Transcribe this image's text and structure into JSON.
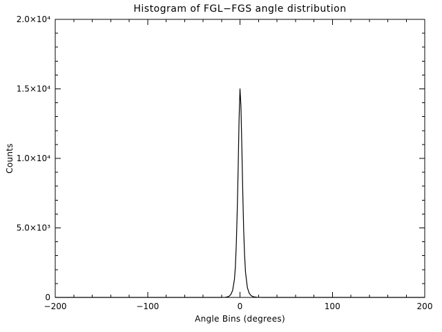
{
  "chart": {
    "title": "Histogram of FGL−FGS angle distribution",
    "xlabel": "Angle Bins (degrees)",
    "ylabel": "Counts"
  },
  "chart_data": {
    "type": "line",
    "title": "Histogram of FGL−FGS angle distribution",
    "xlabel": "Angle Bins (degrees)",
    "ylabel": "Counts",
    "xlim": [
      -200,
      200
    ],
    "ylim": [
      0,
      20000
    ],
    "grid": false,
    "legend": "none",
    "line_color": "#000000",
    "background_color": "#ffffff",
    "xticks": [
      {
        "value": -200,
        "label": "−200"
      },
      {
        "value": -100,
        "label": "−100"
      },
      {
        "value": 0,
        "label": "0"
      },
      {
        "value": 100,
        "label": "100"
      },
      {
        "value": 200,
        "label": "200"
      }
    ],
    "yticks": [
      {
        "value": 0,
        "label": "0"
      },
      {
        "value": 5000,
        "label": "5.0×10³"
      },
      {
        "value": 10000,
        "label": "1.0×10⁴"
      },
      {
        "value": 15000,
        "label": "1.5×10⁴"
      },
      {
        "value": 20000,
        "label": "2.0×10⁴"
      }
    ],
    "x_minor_step": 20,
    "y_minor_step": 1000,
    "x": [
      -200,
      -30,
      -20,
      -16,
      -14,
      -12,
      -10,
      -8,
      -6,
      -5,
      -4,
      -3,
      -2,
      -1,
      0,
      1,
      2,
      3,
      4,
      5,
      6,
      8,
      10,
      12,
      14,
      16,
      18,
      20,
      24,
      30,
      200
    ],
    "y": [
      0,
      0,
      0,
      10,
      30,
      80,
      200,
      500,
      1300,
      2200,
      3800,
      6200,
      9200,
      12800,
      15000,
      13800,
      10800,
      7600,
      4800,
      3000,
      1800,
      700,
      300,
      130,
      60,
      30,
      15,
      5,
      0,
      0,
      0
    ],
    "peak": {
      "x": 0,
      "y": 15000
    }
  }
}
